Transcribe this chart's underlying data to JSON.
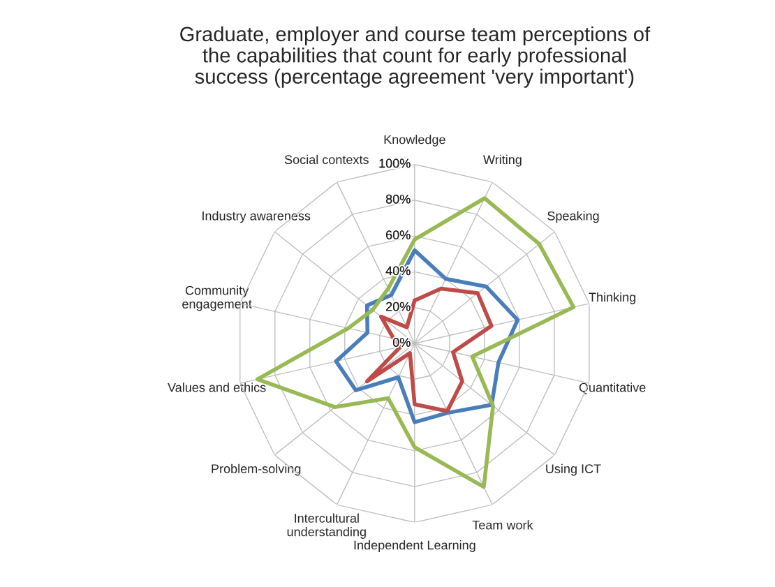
{
  "chart_data": {
    "type": "radar",
    "title": "Graduate, employer and course team perceptions of\nthe capabilities that count for early professional\nsuccess (percentage agreement 'very important')",
    "categories": [
      "Knowledge",
      "Writing",
      "Speaking",
      "Thinking",
      "Quantitative",
      "Using ICT",
      "Team work",
      "Independent Learning",
      "Intercultural\nunderstanding",
      "Problem-solving",
      "Values and ethics",
      "Community\nengagement",
      "Industry awareness",
      "Social contexts"
    ],
    "series": [
      {
        "color": "#4a7ebb",
        "values": [
          52,
          40,
          51,
          59,
          48,
          55,
          43,
          44,
          21,
          42,
          45,
          27,
          34,
          30
        ]
      },
      {
        "color": "#be4b48",
        "values": [
          24,
          34,
          45,
          44,
          22,
          34,
          42,
          34,
          6,
          34,
          8,
          12,
          24,
          10
        ]
      },
      {
        "color": "#98b954",
        "values": [
          58,
          90,
          89,
          91,
          33,
          56,
          89,
          58,
          34,
          57,
          90,
          38,
          30,
          34
        ]
      }
    ],
    "ylim": [
      0,
      100
    ],
    "yticks": [
      {
        "value": 0,
        "label": "0%"
      },
      {
        "value": 20,
        "label": "20%"
      },
      {
        "value": 40,
        "label": "40%"
      },
      {
        "value": 60,
        "label": "60%"
      },
      {
        "value": 80,
        "label": "80%"
      },
      {
        "value": 100,
        "label": "100%"
      }
    ],
    "grid": true,
    "marker": "none",
    "line_style": "solid"
  }
}
